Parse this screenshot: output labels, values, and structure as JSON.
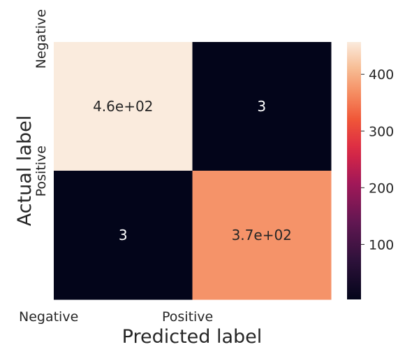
{
  "chart_data": {
    "type": "heatmap",
    "title": "",
    "xlabel": "Predicted label",
    "ylabel": "Actual label",
    "x_categories": [
      "Negative",
      "Positive"
    ],
    "y_categories": [
      "Negative",
      "Positive"
    ],
    "values": [
      [
        457,
        3
      ],
      [
        3,
        373
      ]
    ],
    "annotations": [
      [
        "4.6e+02",
        "3"
      ],
      [
        "3",
        "3.7e+02"
      ]
    ],
    "colormap": "rocket",
    "colorbar": {
      "range": [
        3,
        457
      ],
      "ticks": [
        100,
        200,
        300,
        400
      ]
    },
    "grid": false
  }
}
